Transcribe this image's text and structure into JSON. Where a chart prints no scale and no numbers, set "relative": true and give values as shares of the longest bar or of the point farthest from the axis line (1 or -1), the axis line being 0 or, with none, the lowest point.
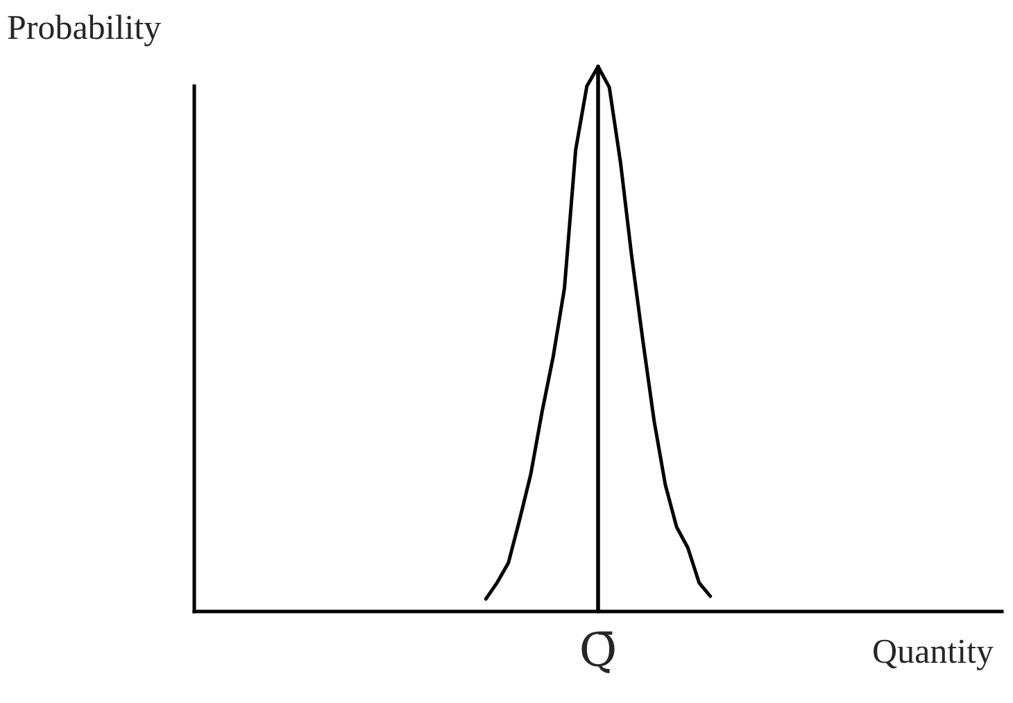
{
  "chart_data": {
    "type": "line",
    "relative": true,
    "xlabel": "Quantity",
    "ylabel": "Probability",
    "categories": [
      null,
      null,
      null,
      null,
      null,
      null,
      null,
      null,
      null,
      null,
      null,
      null,
      null,
      null,
      null,
      null,
      null,
      null,
      null,
      null,
      null,
      null,
      null,
      null,
      null,
      null,
      null,
      null,
      null,
      null,
      null,
      null,
      null,
      null,
      null,
      null,
      null,
      null,
      null,
      null,
      null,
      null,
      null,
      null,
      null,
      null,
      null,
      null,
      null,
      null,
      null,
      null,
      null,
      null,
      null,
      null,
      null,
      null,
      null,
      null,
      null,
      null,
      null,
      null,
      null,
      null,
      null,
      null,
      null,
      null,
      null,
      null,
      null
    ],
    "series": [
      {
        "color": "#000000",
        "values": [
          null,
          null,
          null,
          null,
          null,
          null,
          null,
          null,
          null,
          null,
          null,
          null,
          null,
          null,
          null,
          null,
          null,
          null,
          null,
          null,
          null,
          null,
          null,
          null,
          null,
          null,
          0.023,
          0.053,
          0.089,
          0.168,
          0.252,
          0.366,
          0.468,
          0.593,
          0.847,
          0.964,
          1.0,
          0.962,
          0.824,
          0.651,
          0.496,
          0.349,
          0.232,
          0.155,
          0.117,
          0.053,
          0.028,
          null,
          null,
          null,
          null,
          null,
          null,
          null,
          null,
          null,
          null,
          null,
          null,
          null,
          null,
          null,
          null,
          null,
          null,
          null,
          null,
          null,
          null,
          null,
          null,
          null,
          null
        ]
      }
    ],
    "annotations": [
      "Q̄"
    ],
    "grid": false,
    "legend": false,
    "marker": "none",
    "line_style": "solid"
  }
}
